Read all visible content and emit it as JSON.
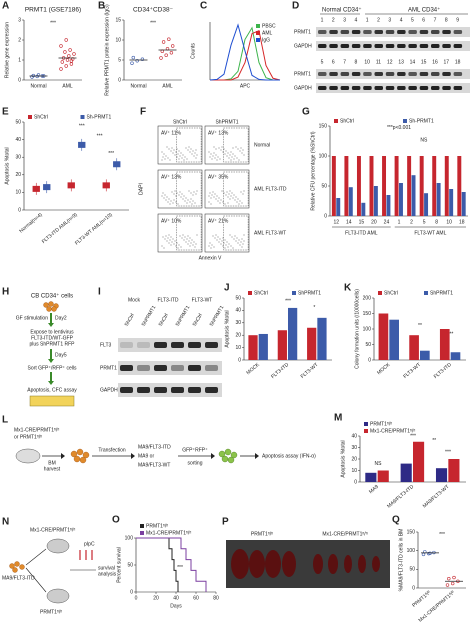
{
  "chart_data": [
    {
      "type": "dot",
      "label": "A",
      "title": "PRMT1 (GSE7186)",
      "ylabel": "Relative gene expression",
      "categories": [
        "Normal",
        "AML"
      ],
      "values": [
        0.2,
        1.1
      ],
      "points": [
        [
          0.15,
          0.18,
          0.2,
          0.22,
          0.25,
          0.2
        ],
        [
          0.55,
          0.7,
          0.8,
          0.9,
          1.0,
          1.05,
          1.1,
          1.2,
          1.3,
          1.4,
          1.5,
          1.7,
          2.0,
          0.95
        ]
      ],
      "colors": [
        "#3c5ba9",
        "#c6262e"
      ],
      "ylim": [
        0,
        3
      ],
      "yticks": [
        0,
        1,
        2,
        3
      ],
      "annotations": [
        "***"
      ]
    },
    {
      "type": "dot",
      "label": "B",
      "title": "CD34⁺CD38⁻",
      "ylabel": "Relative PRMT1 protein expression (IgG)",
      "categories": [
        "Normal",
        "AML"
      ],
      "values": [
        5,
        7.5
      ],
      "points": [
        [
          4.2,
          4.8,
          5.2,
          5.6
        ],
        [
          5.5,
          6.2,
          6.8,
          7.2,
          7.8,
          8.5,
          9.5,
          10.2
        ]
      ],
      "colors": [
        "#3c5ba9",
        "#c6262e"
      ],
      "ylim": [
        0,
        15
      ],
      "yticks": [
        0,
        5,
        10,
        15
      ],
      "annotations": [
        "***"
      ]
    },
    {
      "type": "density",
      "label": "C",
      "ylabel": "Counts",
      "xlabel": "APC",
      "xlim": [
        0,
        10
      ],
      "ylim": [
        0,
        100
      ],
      "legend": "top-right",
      "series": [
        {
          "name": "PBSC",
          "color": "#3cb44b",
          "x": [
            0,
            1,
            2,
            3,
            4,
            5,
            6,
            7,
            8,
            9,
            10
          ],
          "values": [
            0,
            0,
            0,
            2,
            15,
            70,
            90,
            30,
            4,
            0,
            0
          ]
        },
        {
          "name": "AML",
          "color": "#d62728",
          "x": [
            0,
            1,
            2,
            3,
            4,
            5,
            6,
            7,
            8,
            9,
            10
          ],
          "values": [
            0,
            0,
            0,
            0,
            5,
            30,
            80,
            85,
            25,
            3,
            0
          ]
        },
        {
          "name": "IgG",
          "color": "#1f4fd1",
          "x": [
            0,
            1,
            2,
            3,
            4,
            5,
            6,
            7,
            8,
            9,
            10
          ],
          "values": [
            0,
            1,
            10,
            60,
            95,
            50,
            8,
            1,
            0,
            0,
            0
          ]
        }
      ]
    },
    {
      "type": "box",
      "label": "E",
      "ylabel": "Apoptosis %total",
      "categories": [
        "Normal(n=4)",
        "FLT3-ITD AML(n=9)",
        "FLT3-WT AML(n=10)"
      ],
      "series": [
        {
          "name": "ShCtrl",
          "color": "#c6262e",
          "values": [
            12,
            14,
            14
          ]
        },
        {
          "name": "Sh-PRMT1",
          "color": "#3c5ba9",
          "values": [
            13,
            37,
            26
          ]
        }
      ],
      "ylim": [
        0,
        50
      ],
      "yticks": [
        0,
        10,
        20,
        30,
        40,
        50
      ],
      "legend": "top",
      "annotations": [
        "***",
        "***",
        "***"
      ]
    },
    {
      "type": "flow",
      "label": "F",
      "columns": [
        "ShCtrl",
        "ShPRMT1"
      ],
      "rows": [
        "Normal",
        "AML FLT3-ITD",
        "AML FLT3-WT"
      ],
      "xlabel": "Annexin V",
      "ylabel": "DAPI",
      "values": [
        11,
        13,
        13,
        35,
        10,
        21
      ],
      "value_labels": [
        "AV⁺ 11%",
        "AV⁺ 13%",
        "AV⁺ 13%",
        "AV⁺ 35%",
        "AV⁺ 10%",
        "AV⁺ 21%"
      ]
    },
    {
      "type": "bar",
      "label": "G",
      "ylabel": "Relative CFU percentage (%ShCtrl)",
      "categories": [
        "12",
        "14",
        "15",
        "20",
        "24",
        "1",
        "2",
        "5",
        "8",
        "10",
        "18"
      ],
      "groups": [
        "FLT3-ITD AML",
        "FLT3-WT AML"
      ],
      "series": [
        {
          "name": "ShCtrl",
          "color": "#c6262e",
          "values": [
            100,
            100,
            100,
            100,
            100,
            100,
            100,
            100,
            100,
            100,
            100
          ]
        },
        {
          "name": "Sh-PRMT1",
          "color": "#3c5ba9",
          "values": [
            30,
            48,
            22,
            50,
            35,
            55,
            68,
            38,
            55,
            45,
            40
          ]
        }
      ],
      "ylim": [
        0,
        150
      ],
      "yticks": [
        0,
        50,
        100,
        150
      ],
      "legend": "top",
      "annotations": [
        "***p<0.001",
        "NS"
      ]
    },
    {
      "type": "bar",
      "label": "J",
      "ylabel": "Apoptosis %total",
      "categories": [
        "MOCK",
        "FLT3-ITD",
        "FLT3-WT"
      ],
      "series": [
        {
          "name": "ShCtrl",
          "color": "#c6262e",
          "values": [
            20,
            24,
            26
          ]
        },
        {
          "name": "ShPRMT1",
          "color": "#3c5ba9",
          "values": [
            21,
            42,
            34
          ]
        }
      ],
      "ylim": [
        0,
        50
      ],
      "yticks": [
        0,
        10,
        20,
        30,
        40,
        50
      ],
      "legend": "top",
      "annotations": [
        "***",
        "*"
      ]
    },
    {
      "type": "bar",
      "label": "K",
      "ylabel": "Colony formation units (/10000cells)",
      "categories": [
        "MOCK",
        "FLT3-WT",
        "FLT3-ITD"
      ],
      "series": [
        {
          "name": "ShCtrl",
          "color": "#c6262e",
          "values": [
            150,
            80,
            100
          ]
        },
        {
          "name": "ShPRMT1",
          "color": "#3c5ba9",
          "values": [
            130,
            30,
            25
          ]
        }
      ],
      "ylim": [
        0,
        200
      ],
      "yticks": [
        0,
        50,
        100,
        150,
        200
      ],
      "legend": "top",
      "annotations": [
        "**",
        "***"
      ]
    },
    {
      "type": "bar",
      "label": "M",
      "ylabel": "Apoptosis %total",
      "categories": [
        "MA9",
        "MA9/FLT3-ITD",
        "MA9/FLT3-WT"
      ],
      "series": [
        {
          "name": "PRMT1ᶠˡ/ᶠˡ",
          "color": "#2e2a86",
          "values": [
            8,
            16,
            12
          ]
        },
        {
          "name": "Mx1-CRE/PRMT1ᶠˡ/ᶠˡ",
          "color": "#c6262e",
          "values": [
            10,
            35,
            20
          ]
        }
      ],
      "ylim": [
        0,
        40
      ],
      "yticks": [
        0,
        10,
        20,
        30,
        40
      ],
      "legend": "top-left",
      "annotations": [
        "NS",
        "***",
        "**",
        "***"
      ]
    },
    {
      "type": "line",
      "label": "O",
      "ylabel": "Percent survival",
      "xlabel": "Days",
      "legend": "top-left",
      "series": [
        {
          "name": "PRMT1ᶠˡ/ᶠˡ",
          "color": "#222222",
          "x": [
            0,
            30,
            33,
            36,
            38,
            40,
            42
          ],
          "values": [
            100,
            100,
            80,
            60,
            40,
            20,
            0
          ]
        },
        {
          "name": "Mx1-CRE/PRMT1ᶠˡ/ᶠˡ",
          "color": "#7b3fa0",
          "x": [
            0,
            40,
            45,
            50,
            55,
            60,
            70
          ],
          "values": [
            100,
            100,
            80,
            60,
            40,
            20,
            0
          ]
        }
      ],
      "xlim": [
        0,
        80
      ],
      "xticks": [
        0,
        20,
        40,
        60,
        80
      ],
      "ylim": [
        0,
        100
      ],
      "yticks": [
        0,
        50,
        100
      ],
      "annotations": [
        "***"
      ]
    },
    {
      "type": "dot",
      "label": "Q",
      "ylabel": "%MA9/FLT3-ITD cells in BM",
      "categories": [
        "PRMT1ᶠˡ/ᶠˡ",
        "Mx1-CRE/PRMT1ᶠˡ/ᶠˡ"
      ],
      "values": [
        94,
        18
      ],
      "points": [
        [
          90,
          92,
          95,
          97,
          93
        ],
        [
          8,
          12,
          18,
          25,
          28
        ]
      ],
      "colors": [
        "#3c5ba9",
        "#c6262e"
      ],
      "ylim": [
        0,
        150
      ],
      "yticks": [
        0,
        50,
        100,
        150
      ],
      "annotations": [
        "***"
      ]
    }
  ],
  "diagrams": {
    "D": {
      "label": "D",
      "group1": "Normal CD34⁺",
      "group2": "AML CD34⁺",
      "lanes_top": [
        "1",
        "2",
        "3",
        "4",
        "1",
        "2",
        "3",
        "4",
        "5",
        "6",
        "7",
        "8",
        "9"
      ],
      "lanes_bottom": [
        "5",
        "6",
        "7",
        "8",
        "10",
        "11",
        "12",
        "13",
        "14",
        "15",
        "16",
        "17",
        "18"
      ],
      "rows": [
        "PRMT1",
        "GAPDH",
        "PRMT1",
        "GAPDH"
      ]
    },
    "H": {
      "label": "H",
      "start": "CB CD34⁺ cells",
      "step1": "GF stimulation",
      "day1": "Day2",
      "expose": [
        "Expose to lentivirus",
        "FLT3-ITD/WT-GFP",
        "plus ShPRMT1 RFP"
      ],
      "day2": "Day5",
      "sort": "Sort GFP⁺/RFP⁺ cells",
      "assay": "Apoptosis, CFC assay"
    },
    "I": {
      "label": "I",
      "headers": [
        "Mock",
        "FLT3-ITD",
        "FLT3-WT"
      ],
      "lanes": [
        "ShCtrl",
        "ShPRMT1",
        "ShCtrl",
        "ShPRMT1",
        "ShCtrl",
        "ShPRMT1"
      ],
      "rows": [
        "FLT3",
        "PRMT1",
        "GAPDH"
      ]
    },
    "L": {
      "label": "L",
      "mouse": [
        "Mx1-CRE/PRMT1ᶠˡ/ᶠˡ",
        "or PRMT1ᶠˡ/ᶠˡ"
      ],
      "harvest": [
        "BM",
        "harvest"
      ],
      "transfection": "Transfection",
      "constructs": [
        "MA9/FLT3-ITD",
        "MA9 or",
        "MA9/FLT3-WT"
      ],
      "sorting": [
        "GFP⁺RFP⁺",
        "sorting"
      ],
      "assay": "Apoptosis assay (IFN-α)"
    },
    "N": {
      "label": "N",
      "mouse1": "Mx1-CRE/PRMT1ᶠˡ/ᶠˡ",
      "cells": "MA9/FLT3-ITD",
      "drug": "pIpC",
      "analysis": [
        "survival",
        "analysis"
      ],
      "mouse2": "PRMT1ᶠˡ/ᶠˡ"
    },
    "P": {
      "label": "P",
      "left": "PRMT1ᶠˡ/ᶠˡ",
      "right": "Mx1-CRE/PRMT1ᶠˡ/ᶠˡ"
    }
  }
}
